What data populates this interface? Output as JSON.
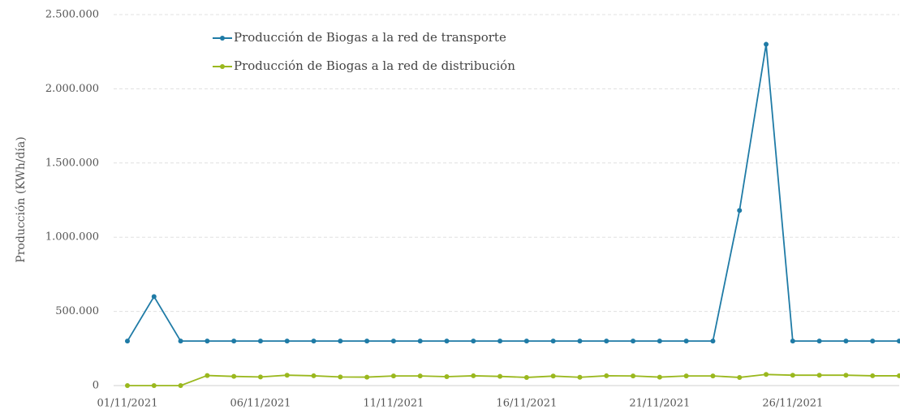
{
  "chart_data": {
    "type": "line",
    "ylabel": "Producción (KWh/día)",
    "categories": [
      "01/11/2021",
      null,
      null,
      null,
      null,
      "06/11/2021",
      null,
      null,
      null,
      null,
      "11/11/2021",
      null,
      null,
      null,
      null,
      "16/11/2021",
      null,
      null,
      null,
      null,
      "21/11/2021",
      null,
      null,
      null,
      null,
      "26/11/2021",
      null,
      null,
      null,
      null
    ],
    "series": [
      {
        "name": "Producción de Biogas a la red de transporte",
        "color": "#1f7ba6",
        "values": [
          300000,
          600000,
          300000,
          300000,
          300000,
          300000,
          300000,
          300000,
          300000,
          300000,
          300000,
          300000,
          300000,
          300000,
          300000,
          300000,
          300000,
          300000,
          300000,
          300000,
          300000,
          300000,
          300000,
          1180000,
          2300000,
          300000,
          300000,
          300000,
          300000,
          300000
        ]
      },
      {
        "name": "Producción de Biogas a la red de distribución",
        "color": "#9ab81e",
        "values": [
          0,
          0,
          0,
          68000,
          62000,
          58000,
          70000,
          66000,
          58000,
          57000,
          65000,
          65000,
          60000,
          66000,
          62000,
          55000,
          64000,
          56000,
          66000,
          65000,
          57000,
          65000,
          65000,
          55000,
          75000,
          70000,
          70000,
          70000,
          66000,
          66000
        ]
      }
    ],
    "ylim": [
      0,
      2500000
    ],
    "yticks": [
      0,
      {
        "value": 500000,
        "label": "500.000"
      },
      {
        "value": 1000000,
        "label": "1.000.000"
      },
      {
        "value": 1500000,
        "label": "1.500.000"
      },
      {
        "value": 2000000,
        "label": "2.000.000"
      },
      {
        "value": 2500000,
        "label": "2.500.000"
      }
    ],
    "grid": true,
    "legend": "top-left"
  }
}
